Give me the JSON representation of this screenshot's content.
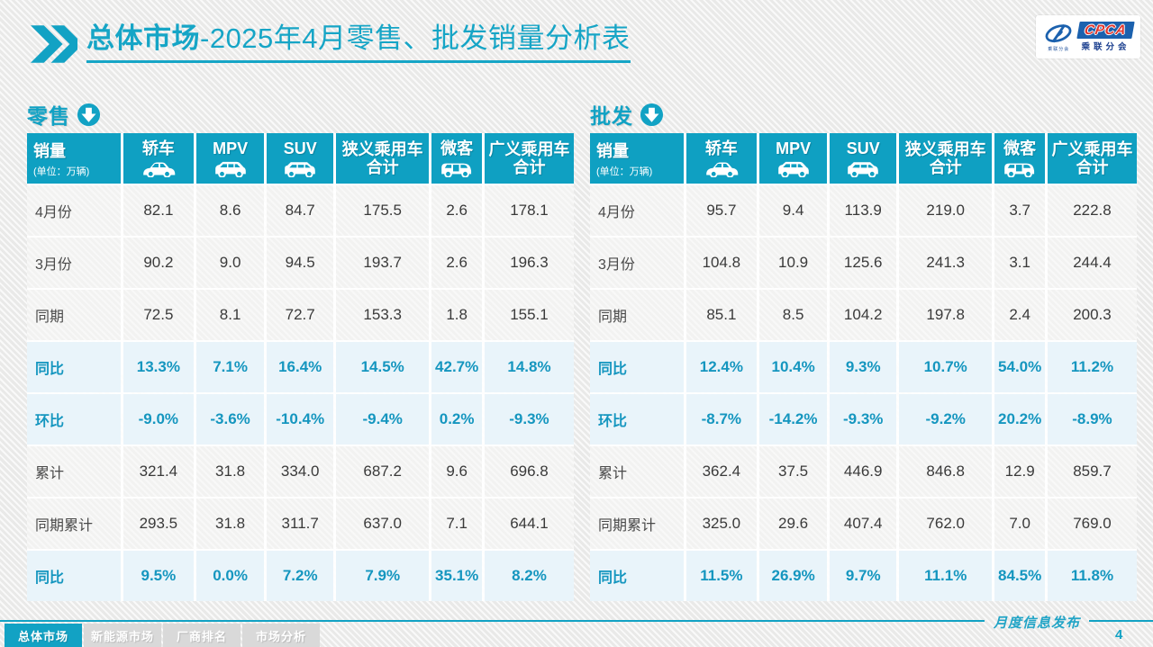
{
  "header": {
    "title_bold": "总体市场",
    "title_rest": "-2025年4月零售、批发销量分析表",
    "logo": {
      "acronym": "CPCA",
      "name": "乘联分会",
      "icon_caption": "乘联分会"
    }
  },
  "colors": {
    "accent": "#12a2c4",
    "header_cell": "#0fa0c2",
    "percent_row_bg": "#e9f4fa",
    "percent_text": "#1596bf",
    "logo_blue": "#1b61ae",
    "logo_red": "#e0332a"
  },
  "table_columns": {
    "col0_label": "销量",
    "col0_sub": "(单位：万辆)",
    "cols": [
      {
        "label": "轿车",
        "icon": "sedan-icon"
      },
      {
        "label": "MPV",
        "icon": "mpv-icon"
      },
      {
        "label": "SUV",
        "icon": "suv-icon"
      },
      {
        "label": "狭义乘用车\n合计",
        "icon": null
      },
      {
        "label": "微客",
        "icon": "microvan-icon"
      },
      {
        "label": "广义乘用车\n合计",
        "icon": null
      }
    ]
  },
  "tables": [
    {
      "id": "retail",
      "section_label": "零售",
      "rows": [
        {
          "label": "4月份",
          "type": "data",
          "values": [
            "82.1",
            "8.6",
            "84.7",
            "175.5",
            "2.6",
            "178.1"
          ]
        },
        {
          "label": "3月份",
          "type": "data",
          "values": [
            "90.2",
            "9.0",
            "94.5",
            "193.7",
            "2.6",
            "196.3"
          ]
        },
        {
          "label": "同期",
          "type": "data",
          "values": [
            "72.5",
            "8.1",
            "72.7",
            "153.3",
            "1.8",
            "155.1"
          ]
        },
        {
          "label": "同比",
          "type": "percent",
          "values": [
            "13.3%",
            "7.1%",
            "16.4%",
            "14.5%",
            "42.7%",
            "14.8%"
          ]
        },
        {
          "label": "环比",
          "type": "percent",
          "values": [
            "-9.0%",
            "-3.6%",
            "-10.4%",
            "-9.4%",
            "0.2%",
            "-9.3%"
          ]
        },
        {
          "label": "累计",
          "type": "data",
          "values": [
            "321.4",
            "31.8",
            "334.0",
            "687.2",
            "9.6",
            "696.8"
          ]
        },
        {
          "label": "同期累计",
          "type": "data",
          "values": [
            "293.5",
            "31.8",
            "311.7",
            "637.0",
            "7.1",
            "644.1"
          ]
        },
        {
          "label": "同比",
          "type": "percent",
          "values": [
            "9.5%",
            "0.0%",
            "7.2%",
            "7.9%",
            "35.1%",
            "8.2%"
          ]
        }
      ]
    },
    {
      "id": "wholesale",
      "section_label": "批发",
      "rows": [
        {
          "label": "4月份",
          "type": "data",
          "values": [
            "95.7",
            "9.4",
            "113.9",
            "219.0",
            "3.7",
            "222.8"
          ]
        },
        {
          "label": "3月份",
          "type": "data",
          "values": [
            "104.8",
            "10.9",
            "125.6",
            "241.3",
            "3.1",
            "244.4"
          ]
        },
        {
          "label": "同期",
          "type": "data",
          "values": [
            "85.1",
            "8.5",
            "104.2",
            "197.8",
            "2.4",
            "200.3"
          ]
        },
        {
          "label": "同比",
          "type": "percent",
          "values": [
            "12.4%",
            "10.4%",
            "9.3%",
            "10.7%",
            "54.0%",
            "11.2%"
          ]
        },
        {
          "label": "环比",
          "type": "percent",
          "values": [
            "-8.7%",
            "-14.2%",
            "-9.3%",
            "-9.2%",
            "20.2%",
            "-8.9%"
          ]
        },
        {
          "label": "累计",
          "type": "data",
          "values": [
            "362.4",
            "37.5",
            "446.9",
            "846.8",
            "12.9",
            "859.7"
          ]
        },
        {
          "label": "同期累计",
          "type": "data",
          "values": [
            "325.0",
            "29.6",
            "407.4",
            "762.0",
            "7.0",
            "769.0"
          ]
        },
        {
          "label": "同比",
          "type": "percent",
          "values": [
            "11.5%",
            "26.9%",
            "9.7%",
            "11.1%",
            "84.5%",
            "11.8%"
          ]
        }
      ]
    }
  ],
  "footer": {
    "tabs": [
      {
        "label": "总体市场",
        "active": true
      },
      {
        "label": "新能源市场",
        "active": false
      },
      {
        "label": "厂商排名",
        "active": false
      },
      {
        "label": "市场分析",
        "active": false
      }
    ],
    "publication_label": "月度信息发布",
    "page_number": "4"
  }
}
